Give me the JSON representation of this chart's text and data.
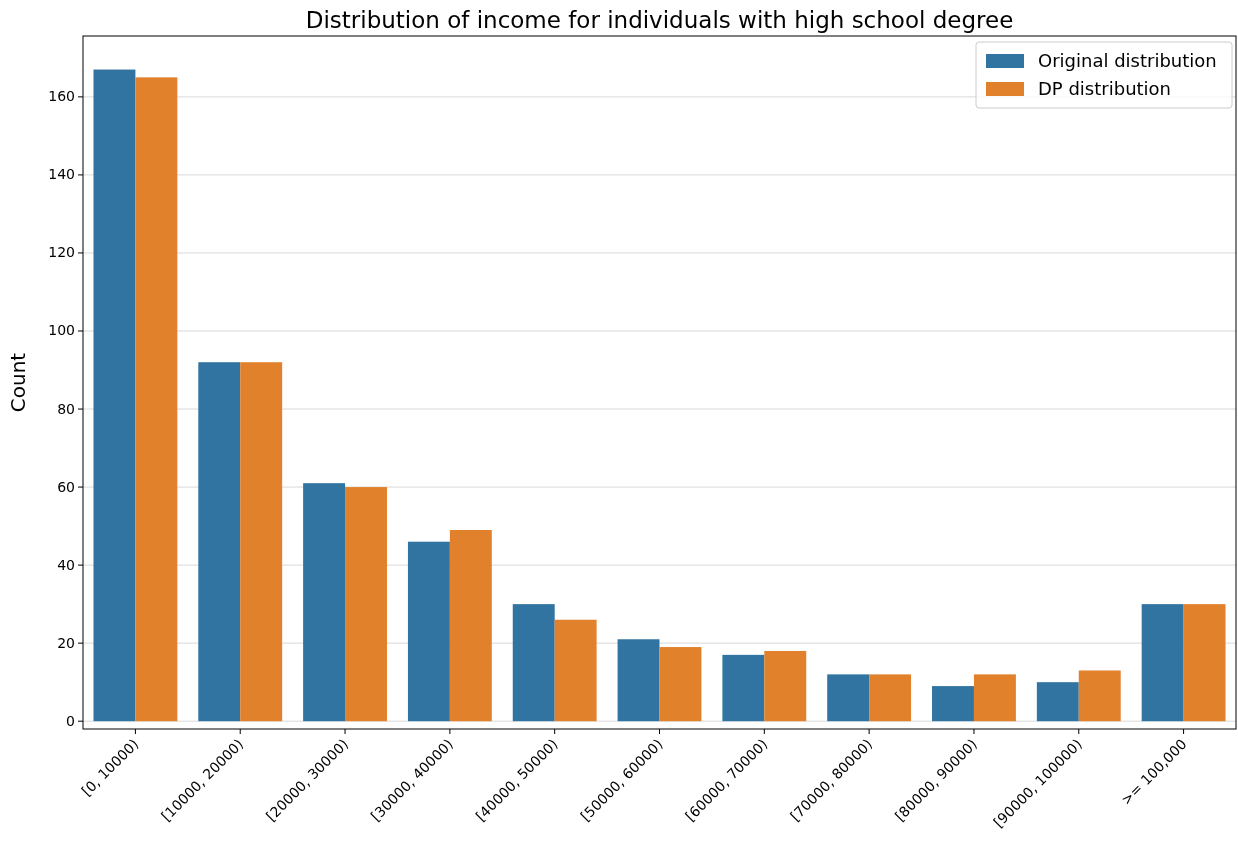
{
  "chart_data": {
    "type": "bar",
    "title": "Distribution of income for individuals with high school degree",
    "ylabel": "Count",
    "categories": [
      "[0, 10000)",
      "[10000, 20000)",
      "[20000, 30000)",
      "[30000, 40000)",
      "[40000, 50000)",
      "[50000, 60000)",
      "[60000, 70000)",
      "[70000, 80000)",
      "[80000, 90000)",
      "[90000, 100000)",
      ">= 100,000"
    ],
    "series": [
      {
        "name": "Original distribution",
        "color": "#3274a1",
        "values": [
          167,
          92,
          61,
          46,
          30,
          21,
          17,
          12,
          9,
          10,
          30
        ]
      },
      {
        "name": "DP distribution",
        "color": "#e1812c",
        "values": [
          165,
          92,
          60,
          49,
          26,
          19,
          18,
          12,
          12,
          13,
          30
        ]
      }
    ],
    "ylim": [
      -2,
      175.6
    ],
    "yticks": [
      0,
      20,
      40,
      60,
      80,
      100,
      120,
      140,
      160
    ],
    "grid": "y",
    "legend": "top right"
  }
}
